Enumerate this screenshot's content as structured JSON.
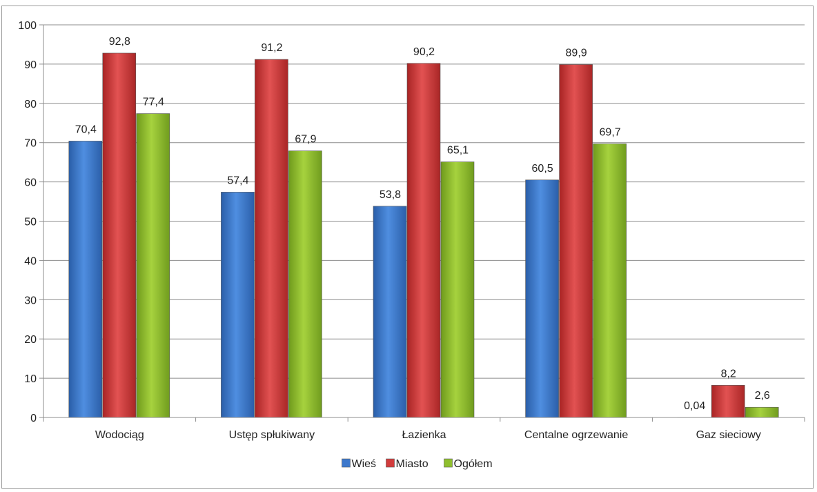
{
  "title": "",
  "colors": {
    "wies": "#3d78cc",
    "miasto": "#d23c3c",
    "ogolem": "#8fbf2e"
  },
  "chart_data": {
    "type": "bar",
    "title": "",
    "xlabel": "",
    "ylabel": "",
    "ylim": [
      0,
      100
    ],
    "yticks": [
      "0",
      "10",
      "20",
      "30",
      "40",
      "50",
      "60",
      "70",
      "80",
      "90",
      "100"
    ],
    "categories": [
      "Wodociąg",
      "Ustęp spłukiwany",
      "Łazienka",
      "Centalne ogrzewanie",
      "Gaz sieciowy"
    ],
    "series": [
      {
        "name": "Wieś",
        "values": [
          70.4,
          57.4,
          53.8,
          60.5,
          0.04
        ],
        "labels": [
          "70,4",
          "57,4",
          "53,8",
          "60,5",
          "0,04"
        ]
      },
      {
        "name": "Miasto",
        "values": [
          92.8,
          91.2,
          90.2,
          89.9,
          8.2
        ],
        "labels": [
          "92,8",
          "91,2",
          "90,2",
          "89,9",
          "8,2"
        ]
      },
      {
        "name": "Ogółem",
        "values": [
          77.4,
          67.9,
          65.1,
          69.7,
          2.6
        ],
        "labels": [
          "77,4",
          "67,9",
          "65,1",
          "69,7",
          "2,6"
        ]
      }
    ],
    "grid": true,
    "legend": "bottom"
  }
}
